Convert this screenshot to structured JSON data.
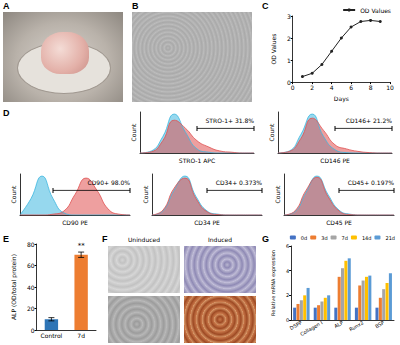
{
  "chart_data": [
    {
      "panel": "C",
      "type": "line",
      "xlabel": "Days",
      "ylabel": "OD Values",
      "x": [
        1,
        2,
        3,
        4,
        5,
        6,
        7,
        8,
        9
      ],
      "series": [
        {
          "name": "OD Values",
          "color": "#222222",
          "marker": "circle",
          "values": [
            0.25,
            0.4,
            0.8,
            1.4,
            2.0,
            2.5,
            2.75,
            2.8,
            2.75
          ]
        }
      ],
      "xlim": [
        0,
        10
      ],
      "xticks": [
        0,
        2,
        4,
        6,
        8,
        10
      ],
      "ylim": [
        0,
        3
      ],
      "yticks": [
        0,
        1,
        2,
        3
      ],
      "legend": "upper right",
      "grid": false
    },
    {
      "panel": "D",
      "type": "area",
      "ylabel": "Count",
      "xlim": [
        0,
        10
      ],
      "ylim": [
        0,
        100
      ],
      "tick_labels": false,
      "grid": false,
      "plots": [
        {
          "xlabel": "STRO-1 APC",
          "annotation": [
            "STRO-1+",
            "31.8%"
          ],
          "gate": [
            5,
            10
          ],
          "x": [
            0,
            1,
            2,
            3,
            4,
            5,
            6,
            7,
            8,
            9,
            10
          ],
          "series": [
            {
              "color": "#3fb8e0",
              "values": [
                0,
                5,
                40,
                95,
                50,
                10,
                2,
                0,
                0,
                0,
                0
              ]
            },
            {
              "color": "#e05050",
              "values": [
                0,
                3,
                30,
                80,
                60,
                30,
                15,
                5,
                2,
                0,
                0
              ]
            }
          ]
        },
        {
          "xlabel": "CD146 PE",
          "annotation": [
            "CD146+",
            "21.2%"
          ],
          "gate": [
            5,
            10
          ],
          "x": [
            0,
            1,
            2,
            3,
            4,
            5,
            6,
            7,
            8,
            9,
            10
          ],
          "series": [
            {
              "color": "#3fb8e0",
              "values": [
                0,
                5,
                45,
                95,
                40,
                8,
                1,
                0,
                0,
                0,
                0
              ]
            },
            {
              "color": "#e05050",
              "values": [
                0,
                4,
                35,
                85,
                55,
                20,
                10,
                4,
                1,
                0,
                0
              ]
            }
          ]
        },
        {
          "xlabel": "CD90 PE",
          "annotation": [
            "CD90+",
            "98.0%"
          ],
          "gate": [
            3,
            10
          ],
          "x": [
            0,
            1,
            2,
            3,
            4,
            5,
            6,
            7,
            8,
            9,
            10
          ],
          "series": [
            {
              "color": "#3fb8e0",
              "values": [
                0,
                40,
                95,
                40,
                5,
                0,
                0,
                0,
                0,
                0,
                0
              ]
            },
            {
              "color": "#e05050",
              "values": [
                0,
                0,
                0,
                2,
                10,
                50,
                90,
                60,
                15,
                2,
                0
              ]
            }
          ]
        },
        {
          "xlabel": "CD34 PE",
          "annotation": [
            "CD34+",
            "0.373%"
          ],
          "gate": [
            5,
            10
          ],
          "x": [
            0,
            1,
            2,
            3,
            4,
            5,
            6,
            7,
            8,
            9,
            10
          ],
          "series": [
            {
              "color": "#3fb8e0",
              "values": [
                0,
                10,
                60,
                95,
                45,
                10,
                2,
                0,
                0,
                0,
                0
              ]
            },
            {
              "color": "#e05050",
              "values": [
                0,
                12,
                65,
                90,
                40,
                8,
                1,
                0,
                0,
                0,
                0
              ]
            }
          ]
        },
        {
          "xlabel": "CD45 PE",
          "annotation": [
            "CD45+",
            "0.197%"
          ],
          "gate": [
            5,
            10
          ],
          "x": [
            0,
            1,
            2,
            3,
            4,
            5,
            6,
            7,
            8,
            9,
            10
          ],
          "series": [
            {
              "color": "#3fb8e0",
              "values": [
                0,
                8,
                55,
                95,
                50,
                12,
                2,
                0,
                0,
                0,
                0
              ]
            },
            {
              "color": "#e05050",
              "values": [
                0,
                10,
                60,
                92,
                45,
                10,
                1,
                0,
                0,
                0,
                0
              ]
            }
          ]
        }
      ]
    },
    {
      "panel": "E",
      "type": "bar",
      "ylabel": "ALP (OD/total protein)",
      "categories": [
        "Control",
        "7d"
      ],
      "values": [
        10,
        70
      ],
      "errors": [
        1.5,
        2.5
      ],
      "annotations": [
        null,
        "**"
      ],
      "colors": [
        "#2e75b6",
        "#ed7d31"
      ],
      "ylim": [
        0,
        80
      ],
      "yticks": [
        0,
        20,
        40,
        60,
        80
      ],
      "grid": false
    },
    {
      "panel": "G",
      "type": "bar",
      "ylabel": "Relative mRNA expression",
      "categories": [
        "DSPP",
        "Collagen I",
        "ALP",
        "Runx2",
        "BSP"
      ],
      "series": [
        {
          "name": "0d",
          "color": "#4472c4",
          "values": [
            1,
            1,
            1,
            1,
            1
          ]
        },
        {
          "name": "3d",
          "color": "#ed7d31",
          "values": [
            1.3,
            1.2,
            3.5,
            2.8,
            1.8
          ]
        },
        {
          "name": "7d",
          "color": "#a5a5a5",
          "values": [
            1.6,
            1.5,
            4.2,
            3.2,
            2.5
          ]
        },
        {
          "name": "14d",
          "color": "#ffc000",
          "values": [
            2.0,
            1.8,
            4.8,
            3.5,
            3.0
          ]
        },
        {
          "name": "21d",
          "color": "#5b9bd5",
          "values": [
            2.6,
            2.0,
            5.0,
            3.6,
            3.8
          ]
        }
      ],
      "ylim": [
        0,
        6
      ],
      "yticks": [
        0,
        2,
        4,
        6
      ],
      "legend": "upper right",
      "grid": false
    }
  ],
  "images": [
    {
      "panel": "A"
    },
    {
      "panel": "B"
    },
    {
      "panel": "F",
      "columns": [
        "Uninduced",
        "Induced"
      ]
    }
  ]
}
